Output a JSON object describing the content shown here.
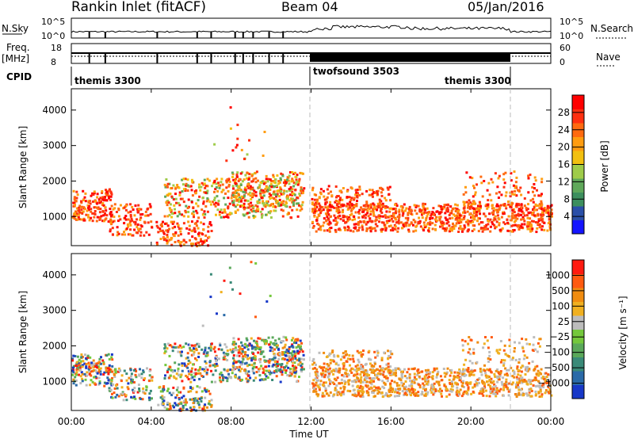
{
  "chart_data": {
    "type": "heatmap",
    "title": "Rankin Inlet (fitACF)",
    "beam": "Beam 04",
    "date": "05/Jan/2016",
    "xlabel": "Time UT",
    "x_ticks": [
      "00:00",
      "04:00",
      "08:00",
      "12:00",
      "16:00",
      "20:00",
      "00:00"
    ],
    "x_range_hours": [
      0,
      24
    ],
    "top_panels": {
      "nsky": {
        "label": "N.Sky",
        "ticks": [
          "10^5",
          "10^0"
        ]
      },
      "nsearch": {
        "label": "N.Search",
        "ticks": [
          "10^5",
          "10^0"
        ]
      },
      "freq": {
        "label_line1": "Freq.",
        "label_line2": "[MHz]",
        "ticks": [
          "18",
          "8"
        ]
      },
      "nave": {
        "label": "Nave",
        "ticks": [
          "60",
          "0"
        ]
      },
      "cpid": {
        "label": "CPID",
        "segments": [
          {
            "name": "themis 3300",
            "start_hour": 0,
            "end_hour": 12
          },
          {
            "name": "twofsound 3503",
            "start_hour": 12,
            "end_hour": 22
          },
          {
            "name": "themis 3300",
            "start_hour": 22,
            "end_hour": 24
          }
        ]
      }
    },
    "panels": [
      {
        "name": "power",
        "ylabel": "Slant Range [km]",
        "y_ticks": [
          1000,
          2000,
          3000,
          4000
        ],
        "y_range_km": [
          180,
          4600
        ],
        "colorbar_label": "Power [dB]",
        "colorbar_ticks": [
          "4",
          "8",
          "12",
          "16",
          "20",
          "24",
          "28"
        ],
        "colorbar_colors": [
          "#1414ff",
          "#2a4fa8",
          "#3d8f5e",
          "#5fa85a",
          "#9fcc4a",
          "#f2c010",
          "#ff9c10",
          "#ff6a10",
          "#ff3010",
          "#ff0000"
        ]
      },
      {
        "name": "velocity",
        "ylabel": "Slant Range [km]",
        "y_ticks": [
          1000,
          2000,
          3000,
          4000
        ],
        "y_range_km": [
          180,
          4600
        ],
        "colorbar_label": "Velocity [m s⁻¹]",
        "colorbar_ticks": [
          "1000",
          "500",
          "100",
          "25",
          "−25",
          "−100",
          "−500",
          "−1000"
        ],
        "colorbar_colors": [
          "#1838c8",
          "#2a6aa8",
          "#3a8a78",
          "#5aa85a",
          "#74c83c",
          "#bcbcbc",
          "#f0b020",
          "#f08c10",
          "#ff5a10",
          "#ff1a10"
        ]
      }
    ],
    "scatter_bands": [
      {
        "t0": 0.0,
        "t1": 2.0,
        "r0": 900,
        "r1": 1800,
        "density": 0.9
      },
      {
        "t0": 1.8,
        "t1": 4.0,
        "r0": 500,
        "r1": 1400,
        "density": 0.6
      },
      {
        "t0": 4.2,
        "t1": 7.0,
        "r0": 200,
        "r1": 900,
        "density": 0.5
      },
      {
        "t0": 4.6,
        "t1": 11.5,
        "r0": 1000,
        "r1": 2100,
        "density": 0.7
      },
      {
        "t0": 8.0,
        "t1": 11.6,
        "r0": 1300,
        "r1": 2300,
        "density": 0.6
      },
      {
        "t0": 12.0,
        "t1": 24.0,
        "r0": 600,
        "r1": 1400,
        "density": 0.85
      },
      {
        "t0": 12.0,
        "t1": 16.0,
        "r0": 1200,
        "r1": 1900,
        "density": 0.4
      },
      {
        "t0": 19.5,
        "t1": 23.5,
        "r0": 1300,
        "r1": 2300,
        "density": 0.3
      },
      {
        "t0": 6.5,
        "t1": 10.0,
        "r0": 2600,
        "r1": 4400,
        "density": 0.05
      }
    ]
  }
}
